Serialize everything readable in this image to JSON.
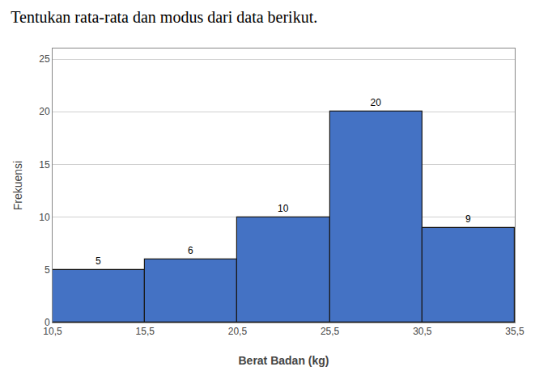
{
  "chart_data": {
    "type": "histogram",
    "title": "Tentukan rata-rata dan modus dari data berikut.",
    "xlabel": "Berat Badan (kg)",
    "ylabel": "Frekuensi",
    "bins": [
      10.5,
      15.5,
      20.5,
      25.5,
      30.5,
      35.5
    ],
    "values": [
      5,
      6,
      10,
      20,
      9
    ],
    "color": "#4472C4",
    "xlim": [
      10.5,
      35.5
    ],
    "xticks": [
      {
        "value": 10.5,
        "label": "10,5"
      },
      {
        "value": 15.5,
        "label": "15,5"
      },
      {
        "value": 20.5,
        "label": "20,5"
      },
      {
        "value": 25.5,
        "label": "25,5"
      },
      {
        "value": 30.5,
        "label": "30,5"
      },
      {
        "value": 35.5,
        "label": "35,5"
      }
    ],
    "ylim": [
      0,
      26
    ],
    "yticks": [
      0,
      5,
      10,
      15,
      20,
      25
    ],
    "grid": true,
    "data_labels": true
  }
}
